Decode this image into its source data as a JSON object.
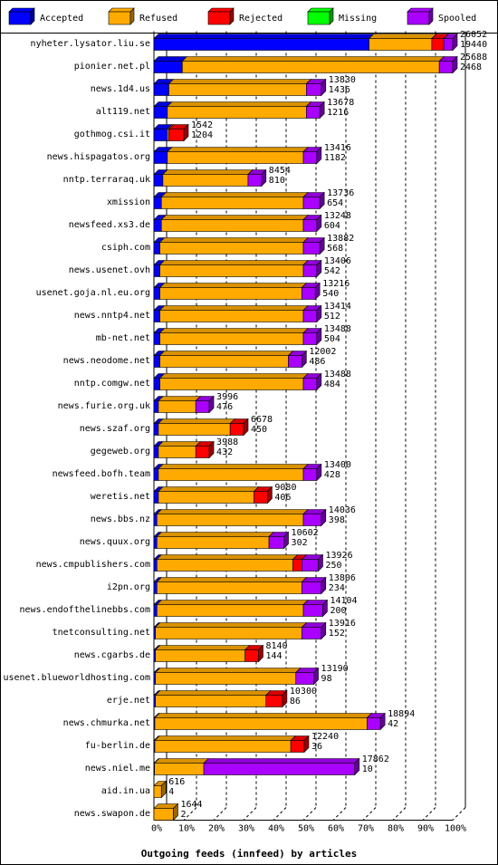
{
  "chart_data": {
    "type": "bar",
    "orientation": "horizontal",
    "stacked": true,
    "title": "Outgoing feeds (innfeed) by articles",
    "xlim": [
      0,
      100
    ],
    "x_ticks": [
      "0%",
      "10%",
      "20%",
      "30%",
      "40%",
      "50%",
      "60%",
      "70%",
      "80%",
      "90%",
      "100%"
    ],
    "grid": true,
    "legend_position": "top",
    "series": [
      {
        "name": "Accepted",
        "color": "#0000ff"
      },
      {
        "name": "Refused",
        "color": "#ffaa00"
      },
      {
        "name": "Rejected",
        "color": "#ff0000"
      },
      {
        "name": "Missing",
        "color": "#00ff00"
      },
      {
        "name": "Spooled",
        "color": "#aa00ff"
      }
    ],
    "rows": [
      {
        "label": "nyheter.lysator.liu.se",
        "offered": "26052",
        "accepted_count": "19440",
        "values": [
          72.0,
          21.0,
          4.0,
          0,
          3.0
        ]
      },
      {
        "label": "pionier.net.pl",
        "offered": "25688",
        "accepted_count": "2468",
        "values": [
          9.5,
          86.0,
          0,
          0,
          4.5
        ]
      },
      {
        "label": "news.1d4.us",
        "offered": "13830",
        "accepted_count": "1436",
        "values": [
          5.0,
          46.0,
          0,
          0,
          5.0
        ]
      },
      {
        "label": "alt119.net",
        "offered": "13678",
        "accepted_count": "1216",
        "values": [
          4.5,
          46.5,
          0,
          0,
          4.5
        ]
      },
      {
        "label": "gothmog.csi.it",
        "offered": "1542",
        "accepted_count": "1204",
        "values": [
          4.5,
          0.5,
          5.0,
          0,
          0
        ]
      },
      {
        "label": "news.hispagatos.org",
        "offered": "13416",
        "accepted_count": "1182",
        "values": [
          4.5,
          45.5,
          0,
          0,
          4.5
        ]
      },
      {
        "label": "nntp.terraraq.uk",
        "offered": "8454",
        "accepted_count": "810",
        "values": [
          3.0,
          28.5,
          0,
          0,
          4.5
        ]
      },
      {
        "label": "xmission",
        "offered": "13736",
        "accepted_count": "654",
        "values": [
          2.5,
          47.5,
          0,
          0,
          5.5
        ]
      },
      {
        "label": "newsfeed.xs3.de",
        "offered": "13248",
        "accepted_count": "604",
        "values": [
          2.5,
          47.5,
          0,
          0,
          4.5
        ]
      },
      {
        "label": "csiph.com",
        "offered": "13882",
        "accepted_count": "568",
        "values": [
          2.0,
          48.0,
          0,
          0,
          5.5
        ]
      },
      {
        "label": "news.usenet.ovh",
        "offered": "13406",
        "accepted_count": "542",
        "values": [
          2.0,
          48.0,
          0,
          0,
          4.5
        ]
      },
      {
        "label": "usenet.goja.nl.eu.org",
        "offered": "13216",
        "accepted_count": "540",
        "values": [
          2.0,
          47.5,
          0,
          0,
          4.5
        ]
      },
      {
        "label": "news.nntp4.net",
        "offered": "13414",
        "accepted_count": "512",
        "values": [
          2.0,
          48.0,
          0,
          0,
          4.5
        ]
      },
      {
        "label": "mb-net.net",
        "offered": "13488",
        "accepted_count": "504",
        "values": [
          2.0,
          48.0,
          0,
          0,
          4.5
        ]
      },
      {
        "label": "news.neodome.net",
        "offered": "12002",
        "accepted_count": "486",
        "values": [
          2.0,
          43.0,
          0,
          0,
          4.5
        ]
      },
      {
        "label": "nntp.comgw.net",
        "offered": "13488",
        "accepted_count": "484",
        "values": [
          2.0,
          48.0,
          0,
          0,
          4.5
        ]
      },
      {
        "label": "news.furie.org.uk",
        "offered": "3996",
        "accepted_count": "476",
        "values": [
          1.5,
          12.5,
          0,
          0,
          4.5
        ]
      },
      {
        "label": "news.szaf.org",
        "offered": "6678",
        "accepted_count": "450",
        "values": [
          1.5,
          24.0,
          4.5,
          0,
          0
        ]
      },
      {
        "label": "gegeweb.org",
        "offered": "3988",
        "accepted_count": "432",
        "values": [
          1.5,
          12.5,
          4.5,
          0,
          0
        ]
      },
      {
        "label": "newsfeed.bofh.team",
        "offered": "13400",
        "accepted_count": "428",
        "values": [
          1.5,
          48.5,
          0,
          0,
          4.5
        ]
      },
      {
        "label": "weretis.net",
        "offered": "9080",
        "accepted_count": "406",
        "values": [
          1.5,
          32.0,
          4.5,
          0,
          0
        ]
      },
      {
        "label": "news.bbs.nz",
        "offered": "14036",
        "accepted_count": "398",
        "values": [
          1.0,
          49.0,
          0,
          0,
          6.0
        ]
      },
      {
        "label": "news.quux.org",
        "offered": "10602",
        "accepted_count": "302",
        "values": [
          1.0,
          37.5,
          0,
          0,
          5.0
        ]
      },
      {
        "label": "news.cmpublishers.com",
        "offered": "13926",
        "accepted_count": "250",
        "values": [
          1.0,
          45.5,
          3.0,
          0,
          5.5
        ]
      },
      {
        "label": "i2pn.org",
        "offered": "13806",
        "accepted_count": "234",
        "values": [
          1.0,
          48.5,
          0,
          0,
          6.5
        ]
      },
      {
        "label": "news.endofthelinebbs.com",
        "offered": "14104",
        "accepted_count": "200",
        "values": [
          1.0,
          49.0,
          0,
          0,
          6.5
        ]
      },
      {
        "label": "tnetconsulting.net",
        "offered": "13916",
        "accepted_count": "152",
        "values": [
          0.5,
          49.0,
          0,
          0,
          6.5
        ]
      },
      {
        "label": "news.cgarbs.de",
        "offered": "8140",
        "accepted_count": "144",
        "values": [
          0.5,
          30.0,
          4.5,
          0,
          0
        ]
      },
      {
        "label": "usenet.blueworldhosting.com",
        "offered": "13190",
        "accepted_count": "98",
        "values": [
          0.5,
          47.0,
          0,
          0,
          6.0
        ]
      },
      {
        "label": "erje.net",
        "offered": "10300",
        "accepted_count": "86",
        "values": [
          0.5,
          37.0,
          5.5,
          0,
          0
        ]
      },
      {
        "label": "news.chmurka.net",
        "offered": "18894",
        "accepted_count": "42",
        "values": [
          0.3,
          71.0,
          0,
          0,
          4.5
        ]
      },
      {
        "label": "fu-berlin.de",
        "offered": "12240",
        "accepted_count": "36",
        "values": [
          0.3,
          45.5,
          4.5,
          0,
          0
        ]
      },
      {
        "label": "news.niel.me",
        "offered": "17862",
        "accepted_count": "10",
        "values": [
          0.2,
          16.5,
          0,
          0,
          50.5
        ]
      },
      {
        "label": "aid.in.ua",
        "offered": "616",
        "accepted_count": "4",
        "values": [
          0,
          2.5,
          0,
          0,
          0
        ]
      },
      {
        "label": "news.swapon.de",
        "offered": "1644",
        "accepted_count": "2",
        "values": [
          0,
          6.5,
          0,
          0,
          0
        ]
      }
    ]
  }
}
